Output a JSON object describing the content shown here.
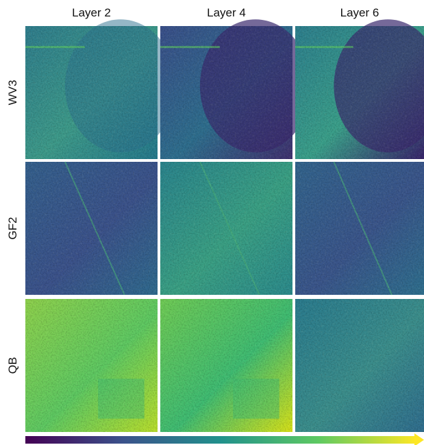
{
  "columns": [
    "Layer 2",
    "Layer 4",
    "Layer 6"
  ],
  "rows": [
    "WV3",
    "GF2",
    "QB"
  ]
}
